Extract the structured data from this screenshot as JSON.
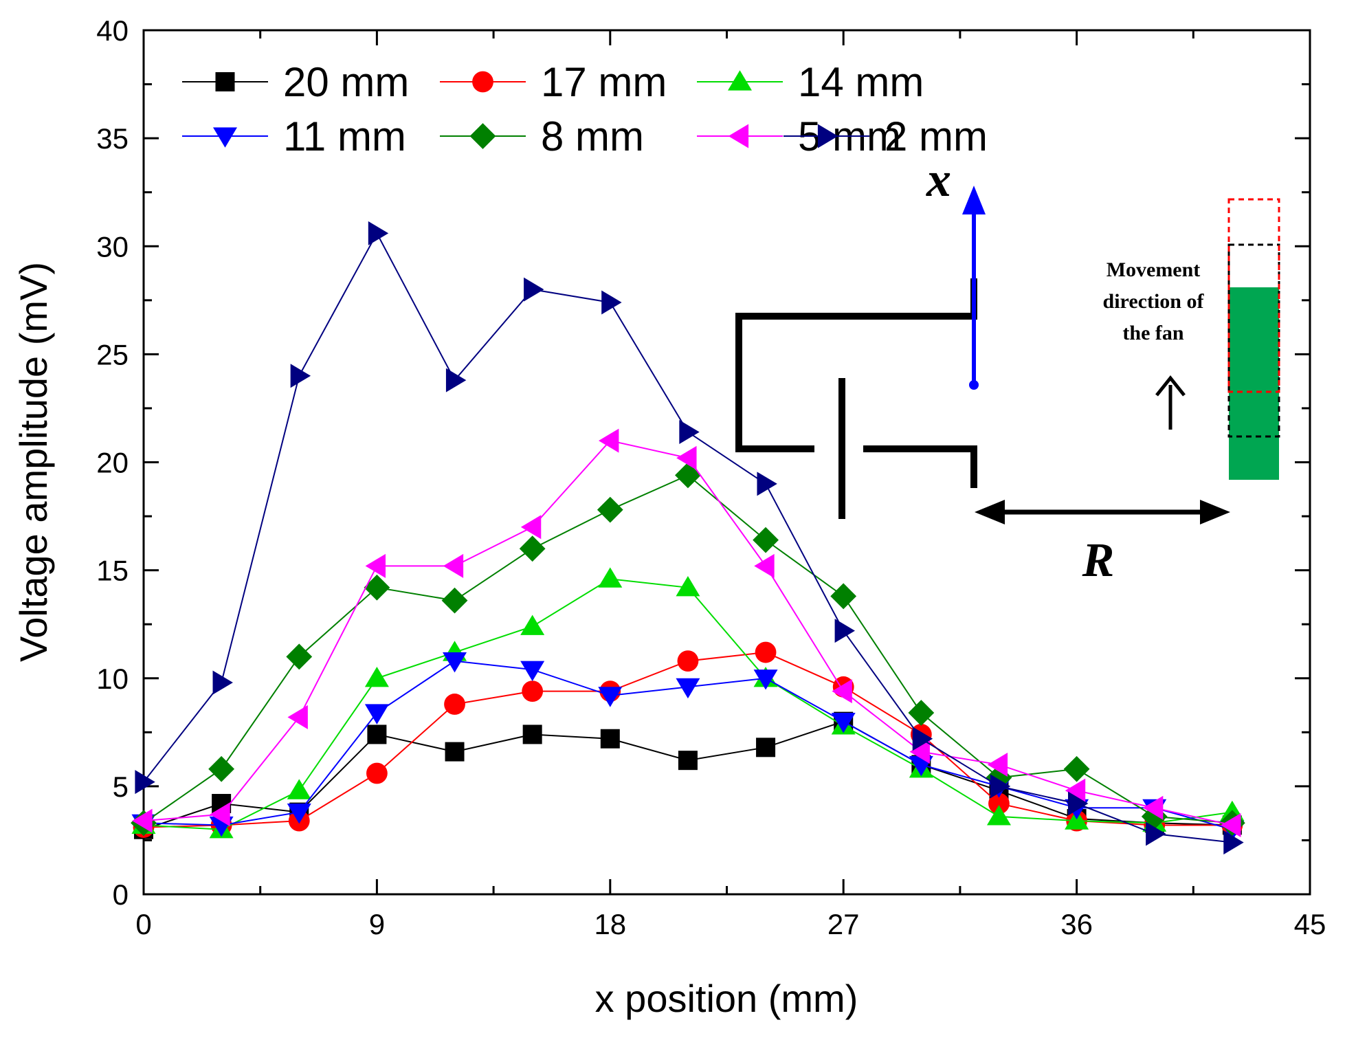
{
  "chart_data": {
    "type": "line",
    "title": "",
    "xlabel": "x position (mm)",
    "ylabel": "Voltage amplitude (mV)",
    "xlim": [
      0,
      45
    ],
    "ylim": [
      0,
      40
    ],
    "xticks": [
      "0",
      "9",
      "18",
      "27",
      "36",
      "45"
    ],
    "yticks": [
      "0",
      "5",
      "10",
      "15",
      "20",
      "25",
      "30",
      "35",
      "40"
    ],
    "grid": false,
    "legend_position": "top-left",
    "x": [
      0,
      3,
      6,
      9,
      12,
      15,
      18,
      21,
      24,
      27,
      30,
      33,
      36,
      39,
      42
    ],
    "series": [
      {
        "name": "20 mm",
        "color": "#000000",
        "marker": "square",
        "values": [
          3.0,
          4.2,
          3.8,
          7.4,
          6.6,
          7.4,
          7.2,
          6.2,
          6.8,
          8.0,
          6.0,
          4.8,
          3.5,
          3.3,
          3.2
        ]
      },
      {
        "name": "17 mm",
        "color": "#ff0000",
        "marker": "circle",
        "values": [
          3.1,
          3.2,
          3.4,
          5.6,
          8.8,
          9.4,
          9.4,
          10.8,
          11.2,
          9.6,
          7.4,
          4.2,
          3.4,
          3.2,
          3.2
        ]
      },
      {
        "name": "14 mm",
        "color": "#00dd00",
        "marker": "triangle-up",
        "values": [
          3.2,
          3.0,
          4.8,
          10.0,
          11.2,
          12.4,
          14.6,
          14.2,
          10.0,
          7.8,
          5.8,
          3.6,
          3.4,
          3.3,
          3.8
        ]
      },
      {
        "name": "11 mm",
        "color": "#0000ff",
        "marker": "triangle-down",
        "values": [
          3.3,
          3.2,
          3.8,
          8.4,
          10.8,
          10.4,
          9.2,
          9.6,
          10.0,
          8.0,
          6.0,
          5.0,
          4.0,
          4.0,
          3.0
        ]
      },
      {
        "name": "8 mm",
        "color": "#008000",
        "marker": "diamond",
        "values": [
          3.3,
          5.8,
          11.0,
          14.2,
          13.6,
          16.0,
          17.8,
          19.4,
          16.4,
          13.8,
          8.4,
          5.4,
          5.8,
          3.6,
          3.3
        ]
      },
      {
        "name": "5 mm",
        "color": "#ff00ff",
        "marker": "triangle-left",
        "values": [
          3.4,
          3.7,
          8.2,
          15.2,
          15.2,
          17.0,
          21.0,
          20.2,
          15.2,
          9.4,
          6.6,
          6.0,
          4.8,
          4.0,
          3.2
        ]
      },
      {
        "name": "2 mm",
        "color": "#000080",
        "marker": "triangle-right",
        "values": [
          5.2,
          9.8,
          24.0,
          30.6,
          23.8,
          28.0,
          27.4,
          21.4,
          19.0,
          12.2,
          7.2,
          5.0,
          4.2,
          2.8,
          2.4
        ]
      }
    ],
    "annotations": {
      "x_arrow_label": "x",
      "r_label": "R",
      "fan_text": [
        "Movement",
        "direction of",
        "the fan"
      ]
    },
    "colors": {
      "x_arrow": "#0000ff",
      "fan_fill": "#00a651",
      "fan_outline_red": "#ff0000",
      "fan_outline_black": "#000000"
    }
  }
}
